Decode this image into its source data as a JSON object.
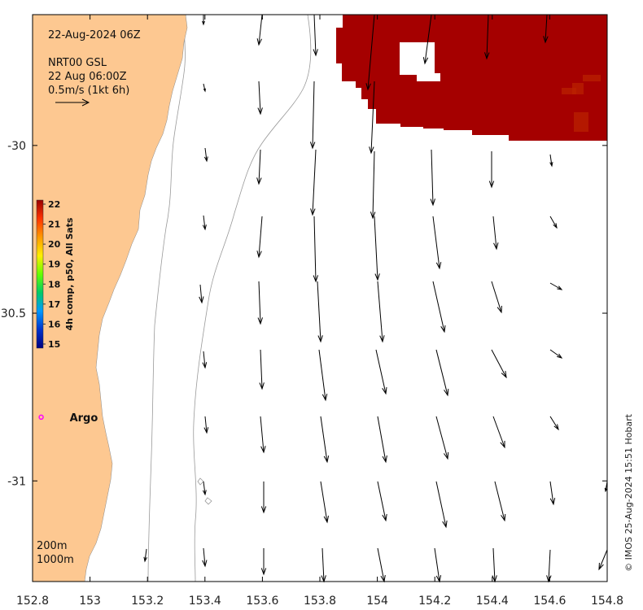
{
  "header": {
    "date_label": "22-Aug-2024 06Z",
    "product_label": "NRT00 GSL",
    "product_time": "22 Aug 06:00Z",
    "scale_arrow_label": "0.5m/s (1kt 6h)",
    "scale_arrow_speed_ms": 0.5
  },
  "axes": {
    "x_ticks": [
      "152.8",
      "153",
      "153.2",
      "153.4",
      "153.6",
      "153.8",
      "154",
      "154.2",
      "154.4",
      "154.6",
      "154.8"
    ],
    "x_values": [
      152.8,
      153.0,
      153.2,
      153.4,
      153.6,
      153.8,
      154.0,
      154.2,
      154.4,
      154.6,
      154.8
    ],
    "y_tick_labels": [
      "-30",
      "30.5",
      "-31"
    ],
    "y_values": [
      -30.0,
      -30.5,
      -31.0
    ],
    "lon_range": [
      152.8,
      154.8
    ],
    "lat_range": [
      -31.3,
      -29.61
    ]
  },
  "colorbar": {
    "title": "4h comp, p50, All Sats",
    "ticks": [
      "22",
      "21",
      "20",
      "19",
      "18",
      "17",
      "16",
      "15"
    ],
    "min": 15,
    "max": 22,
    "stops": [
      "#00007f",
      "#0033cc",
      "#0099ff",
      "#00cc66",
      "#66ff00",
      "#ffee00",
      "#ff9900",
      "#ff3300",
      "#990000"
    ]
  },
  "argo": {
    "label": "Argo",
    "lon": 152.83,
    "lat": -30.81,
    "color": "#ff00ff"
  },
  "depth_legend": {
    "items": [
      "200m",
      "1000m"
    ]
  },
  "credit": {
    "text": "© IMOS 25-Aug-2024 15:51 Hobart"
  },
  "colors": {
    "land": "#fdc891",
    "sst_patch": "#a50000",
    "sst_patch_dark": "#bb2200",
    "contour": "#999999",
    "arrow": "#000000"
  }
}
